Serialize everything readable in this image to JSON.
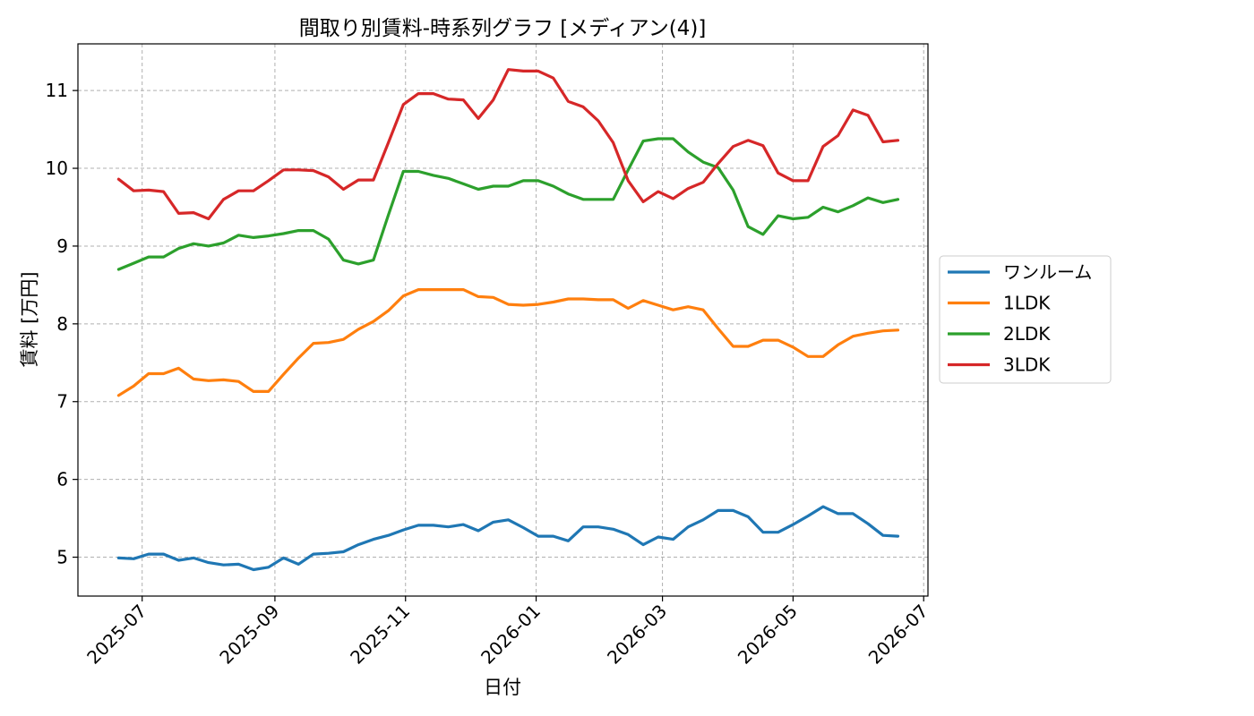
{
  "chart_data": {
    "type": "line",
    "title": "間取り別賃料-時系列グラフ [メディアン(4)]",
    "xlabel": "日付",
    "ylabel": "賃料 [万円]",
    "xlim": [
      "2025-06-01",
      "2026-07-03"
    ],
    "ylim": [
      4.5,
      11.6
    ],
    "x_ticks": [
      "2025-07",
      "2025-09",
      "2025-11",
      "2026-01",
      "2026-03",
      "2026-05",
      "2026-07"
    ],
    "y_ticks": [
      5,
      6,
      7,
      8,
      9,
      10,
      11
    ],
    "grid": true,
    "legend": "center-right-outside",
    "x": [
      "2025-06-20",
      "2025-06-27",
      "2025-07-04",
      "2025-07-11",
      "2025-07-18",
      "2025-07-25",
      "2025-08-01",
      "2025-08-08",
      "2025-08-15",
      "2025-08-22",
      "2025-08-29",
      "2025-09-05",
      "2025-09-12",
      "2025-09-19",
      "2025-09-26",
      "2025-10-03",
      "2025-10-10",
      "2025-10-17",
      "2025-10-24",
      "2025-10-31",
      "2025-11-07",
      "2025-11-14",
      "2025-11-21",
      "2025-11-28",
      "2025-12-05",
      "2025-12-12",
      "2025-12-19",
      "2025-12-26",
      "2026-01-02",
      "2026-01-09",
      "2026-01-16",
      "2026-01-23",
      "2026-01-30",
      "2026-02-06",
      "2026-02-13",
      "2026-02-20",
      "2026-02-27",
      "2026-03-06",
      "2026-03-13",
      "2026-03-20",
      "2026-03-27",
      "2026-04-03",
      "2026-04-10",
      "2026-04-17",
      "2026-04-24",
      "2026-05-01",
      "2026-05-08",
      "2026-05-15",
      "2026-05-22",
      "2026-05-29",
      "2026-06-05",
      "2026-06-12",
      "2026-06-19"
    ],
    "series": [
      {
        "name": "ワンルーム",
        "color": "#1f77b4",
        "values": [
          4.99,
          4.98,
          5.04,
          5.04,
          4.96,
          4.99,
          4.93,
          4.9,
          4.91,
          4.84,
          4.87,
          4.99,
          4.91,
          5.04,
          5.05,
          5.07,
          5.16,
          5.23,
          5.28,
          5.35,
          5.41,
          5.41,
          5.39,
          5.42,
          5.34,
          5.45,
          5.48,
          5.38,
          5.27,
          5.27,
          5.21,
          5.39,
          5.39,
          5.36,
          5.29,
          5.16,
          5.26,
          5.23,
          5.39,
          5.48,
          5.6,
          5.6,
          5.52,
          5.32,
          5.32,
          5.42,
          5.53,
          5.65,
          5.56,
          5.56,
          5.43,
          5.28,
          5.27
        ]
      },
      {
        "name": "1LDK",
        "color": "#ff7f0e",
        "values": [
          7.08,
          7.2,
          7.36,
          7.36,
          7.43,
          7.29,
          7.27,
          7.28,
          7.26,
          7.13,
          7.13,
          7.35,
          7.56,
          7.75,
          7.76,
          7.8,
          7.93,
          8.03,
          8.17,
          8.36,
          8.44,
          8.44,
          8.44,
          8.44,
          8.35,
          8.34,
          8.25,
          8.24,
          8.25,
          8.28,
          8.32,
          8.32,
          8.31,
          8.31,
          8.2,
          8.3,
          8.24,
          8.18,
          8.22,
          8.18,
          7.94,
          7.71,
          7.71,
          7.79,
          7.79,
          7.7,
          7.58,
          7.58,
          7.73,
          7.84,
          7.88,
          7.91,
          7.92
        ]
      },
      {
        "name": "2LDK",
        "color": "#2ca02c",
        "values": [
          8.7,
          8.78,
          8.86,
          8.86,
          8.97,
          9.03,
          9.0,
          9.04,
          9.14,
          9.11,
          9.13,
          9.16,
          9.2,
          9.2,
          9.09,
          8.82,
          8.77,
          8.82,
          9.4,
          9.96,
          9.96,
          9.91,
          9.87,
          9.8,
          9.73,
          9.77,
          9.77,
          9.84,
          9.84,
          9.77,
          9.67,
          9.6,
          9.6,
          9.6,
          9.98,
          10.35,
          10.38,
          10.38,
          10.21,
          10.08,
          10.01,
          9.72,
          9.25,
          9.15,
          9.39,
          9.35,
          9.37,
          9.5,
          9.44,
          9.52,
          9.62,
          9.56,
          9.6
        ]
      },
      {
        "name": "3LDK",
        "color": "#d62728",
        "values": [
          9.86,
          9.71,
          9.72,
          9.7,
          9.42,
          9.43,
          9.35,
          9.6,
          9.71,
          9.71,
          9.84,
          9.98,
          9.98,
          9.97,
          9.89,
          9.73,
          9.85,
          9.85,
          10.33,
          10.82,
          10.96,
          10.96,
          10.89,
          10.88,
          10.64,
          10.88,
          11.27,
          11.25,
          11.25,
          11.16,
          10.86,
          10.79,
          10.61,
          10.33,
          9.84,
          9.57,
          9.7,
          9.61,
          9.74,
          9.82,
          10.06,
          10.28,
          10.36,
          10.29,
          9.94,
          9.84,
          9.84,
          10.28,
          10.42,
          10.75,
          10.68,
          10.34,
          10.36
        ]
      }
    ]
  }
}
